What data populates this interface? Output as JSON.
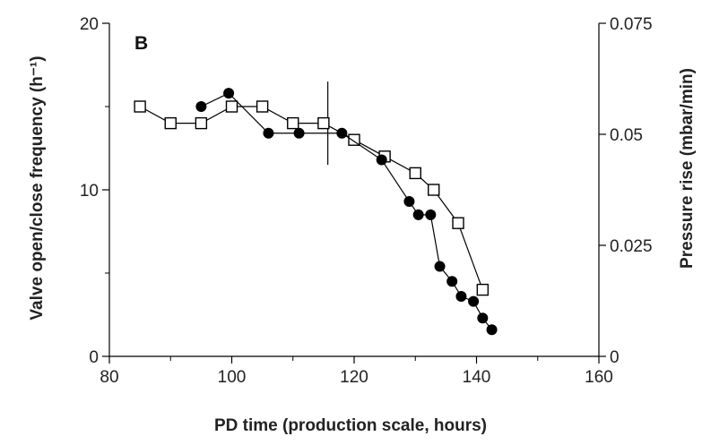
{
  "chart_data": {
    "type": "line",
    "panel_label": "B",
    "xlabel": "PD time (production scale, hours)",
    "ylabel_left": "Valve open/close frequency (h⁻¹)",
    "ylabel_right": "Pressure rise (mbar/min)",
    "xlim": [
      80,
      160
    ],
    "ylim_left": [
      0,
      20
    ],
    "ylim_right": [
      0,
      0.075
    ],
    "x_ticks": [
      "80",
      "100",
      "120",
      "140",
      "160"
    ],
    "y_ticks_left": [
      "0",
      "10",
      "20"
    ],
    "y_ticks_right": [
      "0",
      "0.025",
      "0.05",
      "0.075"
    ],
    "grid": false,
    "vertical_marker_x": 115.7,
    "series": [
      {
        "marker": "filled-circle",
        "axis": "left",
        "color": "#000000",
        "x": [
          95,
          99.5,
          106,
          111,
          118,
          124.5,
          129,
          130.5,
          132.5,
          134,
          136,
          137.5,
          139.5,
          141,
          142.5
        ],
        "y": [
          15.0,
          15.8,
          13.4,
          13.4,
          13.4,
          11.8,
          9.3,
          8.5,
          8.5,
          5.4,
          4.5,
          3.6,
          3.3,
          2.3,
          1.6
        ]
      },
      {
        "marker": "open-square",
        "axis": "left",
        "color": "#000000",
        "x": [
          85,
          90,
          95,
          100,
          105,
          110,
          115,
          120,
          125,
          130,
          133,
          137,
          141
        ],
        "y": [
          15.0,
          14.0,
          14.0,
          15.0,
          15.0,
          14.0,
          14.0,
          13.0,
          12.0,
          11.0,
          10.0,
          8.0,
          4.0
        ]
      }
    ]
  }
}
